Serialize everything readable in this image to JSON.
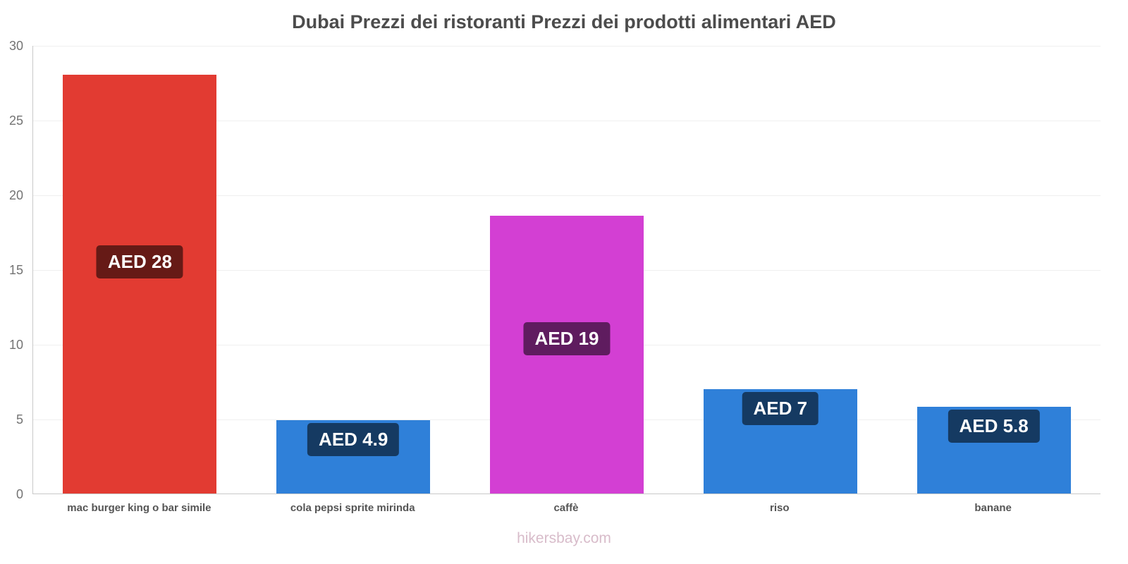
{
  "title": "Dubai Prezzi dei ristoranti Prezzi dei prodotti alimentari AED",
  "footer": "hikersbay.com",
  "chart_data": {
    "type": "bar",
    "title": "Dubai Prezzi dei ristoranti Prezzi dei prodotti alimentari AED",
    "xlabel": "",
    "ylabel": "",
    "categories": [
      "mac burger king o bar simile",
      "cola pepsi sprite mirinda",
      "caffè",
      "riso",
      "banane"
    ],
    "values": [
      28,
      4.9,
      18.6,
      7,
      5.8
    ],
    "display_values": [
      "AED 28",
      "AED 4.9",
      "AED 19",
      "AED 7",
      "AED 5.8"
    ],
    "bar_colors": [
      "#e23b32",
      "#2f80d9",
      "#d33fd3",
      "#2f80d9",
      "#2f80d9"
    ],
    "badge_color": "rgba(0,0,0,0.55)",
    "ylim": [
      0,
      30
    ],
    "yticks": [
      0,
      5,
      10,
      15,
      20,
      25,
      30
    ],
    "grid": "horizontal",
    "legend": "none",
    "currency": "AED",
    "watermark": "hikersbay.com"
  }
}
